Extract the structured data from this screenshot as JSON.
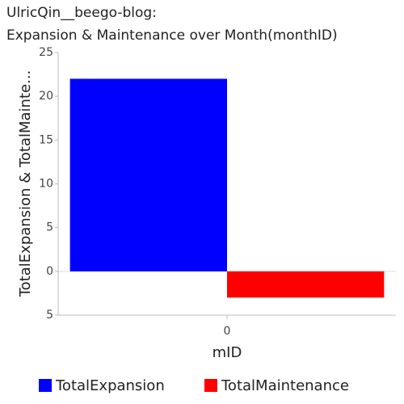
{
  "chart_data": {
    "type": "bar",
    "title": [
      "UlricQin__beego-blog:",
      "Expansion & Maintenance over Month(monthID)"
    ],
    "x_label": "mID",
    "y_label": "TotalExpansion & TotalMainte...",
    "categories": [
      "0"
    ],
    "series": [
      {
        "name": "TotalExpansion",
        "color": "#0000ff",
        "values": [
          22
        ]
      },
      {
        "name": "TotalMaintenance",
        "color": "#ff0000",
        "values": [
          -3
        ]
      }
    ],
    "ylim": [
      -5,
      25
    ],
    "yticks": [
      {
        "value": -5,
        "label": "5"
      },
      0,
      5,
      10,
      15,
      20,
      25
    ],
    "legend": "bottom"
  }
}
